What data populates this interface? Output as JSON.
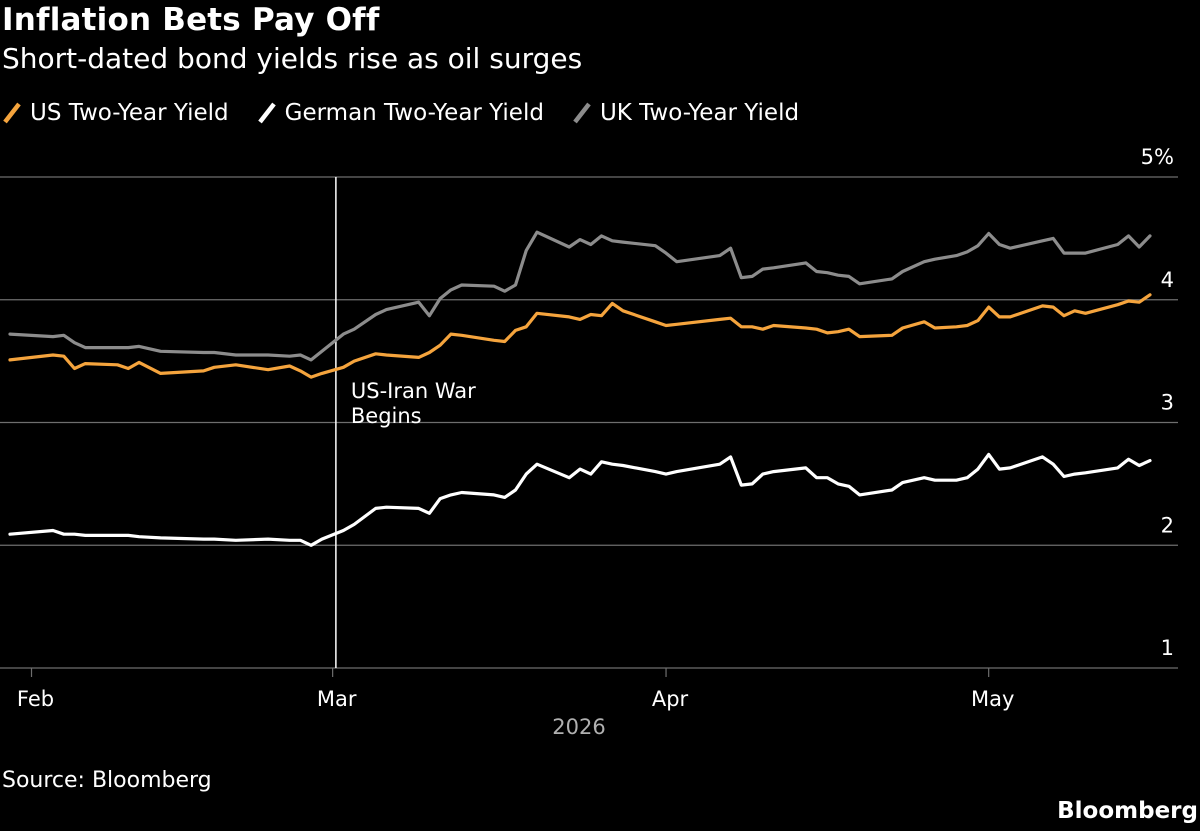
{
  "header": {
    "title": "Inflation Bets Pay Off",
    "subtitle": "Short-dated bond yields rise as oil surges"
  },
  "footer": {
    "source": "Source: Bloomberg",
    "brand": "Bloomberg"
  },
  "colors": {
    "background": "#000000",
    "us": "#f5a43d",
    "german": "#ffffff",
    "uk": "#8c8c8c",
    "grid": "#6e6e6e",
    "text": "#ffffff",
    "muted": "#b0b0b0"
  },
  "chart_data": {
    "type": "line",
    "x_domain": [
      "2026-01-30",
      "2026-05-16"
    ],
    "ylim": [
      1,
      5
    ],
    "y_ticks": [
      {
        "value": 5,
        "label": "5%"
      },
      {
        "value": 4,
        "label": "4"
      },
      {
        "value": 3,
        "label": "3"
      },
      {
        "value": 2,
        "label": "2"
      },
      {
        "value": 1,
        "label": "1"
      }
    ],
    "x_ticks": [
      {
        "date": "2026-02-01",
        "label": "Feb"
      },
      {
        "date": "2026-03-01",
        "label": "Mar"
      },
      {
        "date": "2026-04-01",
        "label": "Apr"
      },
      {
        "date": "2026-05-01",
        "label": "May"
      }
    ],
    "x_year_label": "2026",
    "grid": true,
    "legend_position": "top-left",
    "annotation": {
      "date": "2026-02-28",
      "lines": [
        "US-Iran War",
        "Begins"
      ]
    },
    "series": [
      {
        "name": "US Two-Year Yield",
        "color": "#f5a43d",
        "points": [
          [
            "2026-01-30",
            3.51
          ],
          [
            "2026-02-03",
            3.55
          ],
          [
            "2026-02-04",
            3.54
          ],
          [
            "2026-02-05",
            3.44
          ],
          [
            "2026-02-06",
            3.48
          ],
          [
            "2026-02-09",
            3.47
          ],
          [
            "2026-02-10",
            3.44
          ],
          [
            "2026-02-11",
            3.49
          ],
          [
            "2026-02-13",
            3.4
          ],
          [
            "2026-02-17",
            3.42
          ],
          [
            "2026-02-18",
            3.45
          ],
          [
            "2026-02-20",
            3.47
          ],
          [
            "2026-02-23",
            3.43
          ],
          [
            "2026-02-25",
            3.46
          ],
          [
            "2026-02-26",
            3.42
          ],
          [
            "2026-02-27",
            3.37
          ],
          [
            "2026-02-28",
            3.4
          ],
          [
            "2026-03-02",
            3.45
          ],
          [
            "2026-03-03",
            3.5
          ],
          [
            "2026-03-05",
            3.56
          ],
          [
            "2026-03-06",
            3.55
          ],
          [
            "2026-03-09",
            3.53
          ],
          [
            "2026-03-10",
            3.57
          ],
          [
            "2026-03-11",
            3.63
          ],
          [
            "2026-03-12",
            3.72
          ],
          [
            "2026-03-13",
            3.71
          ],
          [
            "2026-03-16",
            3.67
          ],
          [
            "2026-03-17",
            3.66
          ],
          [
            "2026-03-18",
            3.75
          ],
          [
            "2026-03-19",
            3.78
          ],
          [
            "2026-03-20",
            3.89
          ],
          [
            "2026-03-23",
            3.86
          ],
          [
            "2026-03-24",
            3.84
          ],
          [
            "2026-03-25",
            3.88
          ],
          [
            "2026-03-26",
            3.87
          ],
          [
            "2026-03-27",
            3.97
          ],
          [
            "2026-03-28",
            3.91
          ],
          [
            "2026-03-31",
            3.82
          ],
          [
            "2026-04-01",
            3.79
          ],
          [
            "2026-04-02",
            3.8
          ],
          [
            "2026-04-06",
            3.84
          ],
          [
            "2026-04-07",
            3.85
          ],
          [
            "2026-04-08",
            3.78
          ],
          [
            "2026-04-09",
            3.78
          ],
          [
            "2026-04-10",
            3.76
          ],
          [
            "2026-04-11",
            3.79
          ],
          [
            "2026-04-14",
            3.77
          ],
          [
            "2026-04-15",
            3.76
          ],
          [
            "2026-04-16",
            3.73
          ],
          [
            "2026-04-17",
            3.74
          ],
          [
            "2026-04-18",
            3.76
          ],
          [
            "2026-04-19",
            3.7
          ],
          [
            "2026-04-22",
            3.71
          ],
          [
            "2026-04-23",
            3.77
          ],
          [
            "2026-04-25",
            3.82
          ],
          [
            "2026-04-26",
            3.77
          ],
          [
            "2026-04-28",
            3.78
          ],
          [
            "2026-04-29",
            3.79
          ],
          [
            "2026-04-30",
            3.83
          ],
          [
            "2026-05-01",
            3.94
          ],
          [
            "2026-05-02",
            3.86
          ],
          [
            "2026-05-03",
            3.86
          ],
          [
            "2026-05-06",
            3.95
          ],
          [
            "2026-05-07",
            3.94
          ],
          [
            "2026-05-08",
            3.87
          ],
          [
            "2026-05-09",
            3.91
          ],
          [
            "2026-05-10",
            3.89
          ],
          [
            "2026-05-13",
            3.96
          ],
          [
            "2026-05-14",
            3.99
          ],
          [
            "2026-05-15",
            3.98
          ],
          [
            "2026-05-16",
            4.04
          ]
        ]
      },
      {
        "name": "German Two-Year Yield",
        "color": "#ffffff",
        "points": [
          [
            "2026-01-30",
            2.09
          ],
          [
            "2026-02-03",
            2.12
          ],
          [
            "2026-02-04",
            2.09
          ],
          [
            "2026-02-05",
            2.09
          ],
          [
            "2026-02-06",
            2.08
          ],
          [
            "2026-02-09",
            2.08
          ],
          [
            "2026-02-10",
            2.08
          ],
          [
            "2026-02-11",
            2.07
          ],
          [
            "2026-02-13",
            2.06
          ],
          [
            "2026-02-17",
            2.05
          ],
          [
            "2026-02-18",
            2.05
          ],
          [
            "2026-02-20",
            2.04
          ],
          [
            "2026-02-23",
            2.05
          ],
          [
            "2026-02-25",
            2.04
          ],
          [
            "2026-02-26",
            2.04
          ],
          [
            "2026-02-27",
            2.0
          ],
          [
            "2026-02-28",
            2.05
          ],
          [
            "2026-03-02",
            2.12
          ],
          [
            "2026-03-03",
            2.17
          ],
          [
            "2026-03-05",
            2.3
          ],
          [
            "2026-03-06",
            2.31
          ],
          [
            "2026-03-09",
            2.3
          ],
          [
            "2026-03-10",
            2.26
          ],
          [
            "2026-03-11",
            2.38
          ],
          [
            "2026-03-12",
            2.41
          ],
          [
            "2026-03-13",
            2.43
          ],
          [
            "2026-03-16",
            2.41
          ],
          [
            "2026-03-17",
            2.39
          ],
          [
            "2026-03-18",
            2.45
          ],
          [
            "2026-03-19",
            2.58
          ],
          [
            "2026-03-20",
            2.66
          ],
          [
            "2026-03-23",
            2.55
          ],
          [
            "2026-03-24",
            2.62
          ],
          [
            "2026-03-25",
            2.58
          ],
          [
            "2026-03-26",
            2.68
          ],
          [
            "2026-03-27",
            2.66
          ],
          [
            "2026-03-28",
            2.65
          ],
          [
            "2026-03-31",
            2.6
          ],
          [
            "2026-04-01",
            2.58
          ],
          [
            "2026-04-02",
            2.6
          ],
          [
            "2026-04-06",
            2.66
          ],
          [
            "2026-04-07",
            2.72
          ],
          [
            "2026-04-08",
            2.49
          ],
          [
            "2026-04-09",
            2.5
          ],
          [
            "2026-04-10",
            2.58
          ],
          [
            "2026-04-11",
            2.6
          ],
          [
            "2026-04-14",
            2.63
          ],
          [
            "2026-04-15",
            2.55
          ],
          [
            "2026-04-16",
            2.55
          ],
          [
            "2026-04-17",
            2.5
          ],
          [
            "2026-04-18",
            2.48
          ],
          [
            "2026-04-19",
            2.41
          ],
          [
            "2026-04-22",
            2.45
          ],
          [
            "2026-04-23",
            2.51
          ],
          [
            "2026-04-25",
            2.55
          ],
          [
            "2026-04-26",
            2.53
          ],
          [
            "2026-04-28",
            2.53
          ],
          [
            "2026-04-29",
            2.55
          ],
          [
            "2026-04-30",
            2.62
          ],
          [
            "2026-05-01",
            2.74
          ],
          [
            "2026-05-02",
            2.62
          ],
          [
            "2026-05-03",
            2.63
          ],
          [
            "2026-05-06",
            2.72
          ],
          [
            "2026-05-07",
            2.66
          ],
          [
            "2026-05-08",
            2.56
          ],
          [
            "2026-05-09",
            2.58
          ],
          [
            "2026-05-10",
            2.59
          ],
          [
            "2026-05-13",
            2.63
          ],
          [
            "2026-05-14",
            2.7
          ],
          [
            "2026-05-15",
            2.65
          ],
          [
            "2026-05-16",
            2.69
          ]
        ]
      },
      {
        "name": "UK Two-Year Yield",
        "color": "#8c8c8c",
        "points": [
          [
            "2026-01-30",
            3.72
          ],
          [
            "2026-02-03",
            3.7
          ],
          [
            "2026-02-04",
            3.71
          ],
          [
            "2026-02-05",
            3.65
          ],
          [
            "2026-02-06",
            3.61
          ],
          [
            "2026-02-09",
            3.61
          ],
          [
            "2026-02-10",
            3.61
          ],
          [
            "2026-02-11",
            3.62
          ],
          [
            "2026-02-13",
            3.58
          ],
          [
            "2026-02-17",
            3.57
          ],
          [
            "2026-02-18",
            3.57
          ],
          [
            "2026-02-20",
            3.55
          ],
          [
            "2026-02-23",
            3.55
          ],
          [
            "2026-02-25",
            3.54
          ],
          [
            "2026-02-26",
            3.55
          ],
          [
            "2026-02-27",
            3.51
          ],
          [
            "2026-02-28",
            3.58
          ],
          [
            "2026-03-02",
            3.72
          ],
          [
            "2026-03-03",
            3.76
          ],
          [
            "2026-03-05",
            3.88
          ],
          [
            "2026-03-06",
            3.92
          ],
          [
            "2026-03-09",
            3.98
          ],
          [
            "2026-03-10",
            3.87
          ],
          [
            "2026-03-11",
            4.01
          ],
          [
            "2026-03-12",
            4.08
          ],
          [
            "2026-03-13",
            4.12
          ],
          [
            "2026-03-16",
            4.11
          ],
          [
            "2026-03-17",
            4.07
          ],
          [
            "2026-03-18",
            4.12
          ],
          [
            "2026-03-19",
            4.4
          ],
          [
            "2026-03-20",
            4.55
          ],
          [
            "2026-03-23",
            4.43
          ],
          [
            "2026-03-24",
            4.49
          ],
          [
            "2026-03-25",
            4.45
          ],
          [
            "2026-03-26",
            4.52
          ],
          [
            "2026-03-27",
            4.48
          ],
          [
            "2026-03-28",
            4.47
          ],
          [
            "2026-03-31",
            4.44
          ],
          [
            "2026-04-01",
            4.38
          ],
          [
            "2026-04-02",
            4.31
          ],
          [
            "2026-04-06",
            4.36
          ],
          [
            "2026-04-07",
            4.42
          ],
          [
            "2026-04-08",
            4.18
          ],
          [
            "2026-04-09",
            4.19
          ],
          [
            "2026-04-10",
            4.25
          ],
          [
            "2026-04-11",
            4.26
          ],
          [
            "2026-04-14",
            4.3
          ],
          [
            "2026-04-15",
            4.23
          ],
          [
            "2026-04-16",
            4.22
          ],
          [
            "2026-04-17",
            4.2
          ],
          [
            "2026-04-18",
            4.19
          ],
          [
            "2026-04-19",
            4.13
          ],
          [
            "2026-04-22",
            4.17
          ],
          [
            "2026-04-23",
            4.23
          ],
          [
            "2026-04-25",
            4.31
          ],
          [
            "2026-04-26",
            4.33
          ],
          [
            "2026-04-28",
            4.36
          ],
          [
            "2026-04-29",
            4.39
          ],
          [
            "2026-04-30",
            4.44
          ],
          [
            "2026-05-01",
            4.54
          ],
          [
            "2026-05-02",
            4.45
          ],
          [
            "2026-05-03",
            4.42
          ],
          [
            "2026-05-06",
            4.48
          ],
          [
            "2026-05-07",
            4.5
          ],
          [
            "2026-05-08",
            4.38
          ],
          [
            "2026-05-09",
            4.38
          ],
          [
            "2026-05-10",
            4.38
          ],
          [
            "2026-05-13",
            4.45
          ],
          [
            "2026-05-14",
            4.52
          ],
          [
            "2026-05-15",
            4.43
          ],
          [
            "2026-05-16",
            4.52
          ]
        ]
      }
    ]
  }
}
